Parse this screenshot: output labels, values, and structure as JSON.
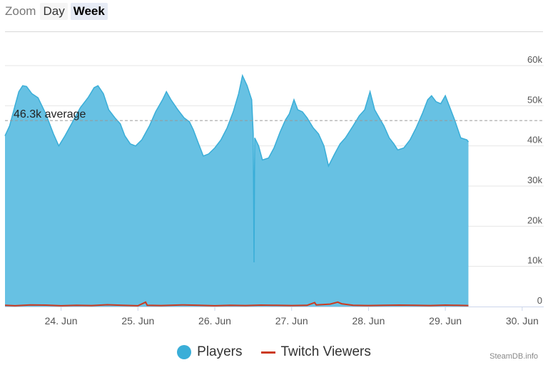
{
  "zoom": {
    "label": "Zoom",
    "buttons": [
      "Day",
      "Week"
    ],
    "active": "Week"
  },
  "credit": "SteamDB.info",
  "colors": {
    "players": "#67c1e3",
    "players_line": "#3aaed8",
    "twitch": "#cc3a1f",
    "grid": "#e6e6e6",
    "average": "#999999"
  },
  "chart_data": {
    "type": "area",
    "title": "",
    "xlabel": "",
    "ylabel": "",
    "x_unit": "days",
    "x_ticks": [
      {
        "label": "24. Jun",
        "x": 1.0
      },
      {
        "label": "25. Jun",
        "x": 2.0
      },
      {
        "label": "26. Jun",
        "x": 3.0
      },
      {
        "label": "27. Jun",
        "x": 4.0
      },
      {
        "label": "28. Jun",
        "x": 5.0
      },
      {
        "label": "29. Jun",
        "x": 6.0
      },
      {
        "label": "30. Jun",
        "x": 7.0
      }
    ],
    "y_ticks": [
      {
        "label": "0",
        "value": 0
      },
      {
        "label": "10k",
        "value": 10000
      },
      {
        "label": "20k",
        "value": 20000
      },
      {
        "label": "30k",
        "value": 30000
      },
      {
        "label": "40k",
        "value": 40000
      },
      {
        "label": "50k",
        "value": 50000
      },
      {
        "label": "60k",
        "value": 60000
      }
    ],
    "xlim": [
      0.27,
      7.28
    ],
    "ylim": [
      0,
      60000
    ],
    "grid": true,
    "legend_position": "bottom-center",
    "average": {
      "value": 46300,
      "label": "46.3k average"
    },
    "series": [
      {
        "name": "Players",
        "kind": "area",
        "points": [
          [
            0.27,
            42500
          ],
          [
            0.33,
            45000
          ],
          [
            0.4,
            50000
          ],
          [
            0.45,
            53500
          ],
          [
            0.5,
            55000
          ],
          [
            0.55,
            54800
          ],
          [
            0.62,
            53000
          ],
          [
            0.7,
            52000
          ],
          [
            0.8,
            48000
          ],
          [
            0.9,
            43000
          ],
          [
            0.97,
            40000
          ],
          [
            1.05,
            42500
          ],
          [
            1.15,
            46000
          ],
          [
            1.25,
            49500
          ],
          [
            1.35,
            52000
          ],
          [
            1.43,
            54500
          ],
          [
            1.48,
            55000
          ],
          [
            1.55,
            53000
          ],
          [
            1.62,
            49000
          ],
          [
            1.7,
            47000
          ],
          [
            1.77,
            45500
          ],
          [
            1.83,
            42500
          ],
          [
            1.9,
            40500
          ],
          [
            1.97,
            40000
          ],
          [
            2.05,
            41500
          ],
          [
            2.15,
            45000
          ],
          [
            2.23,
            48500
          ],
          [
            2.32,
            51500
          ],
          [
            2.37,
            53500
          ],
          [
            2.43,
            51500
          ],
          [
            2.52,
            49000
          ],
          [
            2.6,
            47000
          ],
          [
            2.67,
            46000
          ],
          [
            2.72,
            44000
          ],
          [
            2.78,
            41000
          ],
          [
            2.85,
            37500
          ],
          [
            2.92,
            38000
          ],
          [
            3.0,
            39500
          ],
          [
            3.08,
            41500
          ],
          [
            3.16,
            44500
          ],
          [
            3.24,
            48500
          ],
          [
            3.31,
            53000
          ],
          [
            3.36,
            57500
          ],
          [
            3.42,
            55000
          ],
          [
            3.48,
            51500
          ],
          [
            3.5,
            43000
          ],
          [
            3.51,
            11000
          ],
          [
            3.52,
            42000
          ],
          [
            3.57,
            40000
          ],
          [
            3.62,
            36500
          ],
          [
            3.7,
            37000
          ],
          [
            3.77,
            39500
          ],
          [
            3.85,
            43500
          ],
          [
            3.92,
            46500
          ],
          [
            3.97,
            48000
          ],
          [
            4.03,
            51500
          ],
          [
            4.08,
            49000
          ],
          [
            4.14,
            48500
          ],
          [
            4.2,
            47000
          ],
          [
            4.28,
            44500
          ],
          [
            4.35,
            43000
          ],
          [
            4.42,
            40000
          ],
          [
            4.48,
            35000
          ],
          [
            4.56,
            38000
          ],
          [
            4.63,
            40500
          ],
          [
            4.7,
            42000
          ],
          [
            4.8,
            45000
          ],
          [
            4.88,
            47500
          ],
          [
            4.95,
            49000
          ],
          [
            5.02,
            53500
          ],
          [
            5.08,
            49000
          ],
          [
            5.14,
            47000
          ],
          [
            5.2,
            45000
          ],
          [
            5.27,
            42000
          ],
          [
            5.33,
            40500
          ],
          [
            5.38,
            39000
          ],
          [
            5.46,
            39500
          ],
          [
            5.54,
            41500
          ],
          [
            5.62,
            44500
          ],
          [
            5.7,
            48000
          ],
          [
            5.77,
            51500
          ],
          [
            5.82,
            52500
          ],
          [
            5.88,
            51000
          ],
          [
            5.94,
            50500
          ],
          [
            6.0,
            52500
          ],
          [
            6.05,
            50000
          ],
          [
            6.12,
            46500
          ],
          [
            6.2,
            42000
          ],
          [
            6.28,
            41500
          ],
          [
            6.3,
            41000
          ]
        ]
      },
      {
        "name": "Twitch Viewers",
        "kind": "line",
        "points": [
          [
            0.27,
            300
          ],
          [
            0.4,
            200
          ],
          [
            0.6,
            400
          ],
          [
            0.8,
            350
          ],
          [
            1.0,
            200
          ],
          [
            1.2,
            300
          ],
          [
            1.4,
            250
          ],
          [
            1.6,
            450
          ],
          [
            1.8,
            300
          ],
          [
            2.0,
            200
          ],
          [
            2.1,
            1100
          ],
          [
            2.12,
            300
          ],
          [
            2.3,
            250
          ],
          [
            2.6,
            400
          ],
          [
            2.8,
            300
          ],
          [
            3.0,
            200
          ],
          [
            3.2,
            300
          ],
          [
            3.4,
            250
          ],
          [
            3.6,
            350
          ],
          [
            3.8,
            300
          ],
          [
            4.0,
            250
          ],
          [
            4.2,
            300
          ],
          [
            4.3,
            1000
          ],
          [
            4.32,
            400
          ],
          [
            4.5,
            600
          ],
          [
            4.6,
            1100
          ],
          [
            4.65,
            700
          ],
          [
            4.8,
            300
          ],
          [
            5.0,
            250
          ],
          [
            5.2,
            300
          ],
          [
            5.4,
            350
          ],
          [
            5.6,
            300
          ],
          [
            5.8,
            250
          ],
          [
            6.0,
            350
          ],
          [
            6.15,
            300
          ],
          [
            6.3,
            250
          ]
        ]
      }
    ]
  }
}
